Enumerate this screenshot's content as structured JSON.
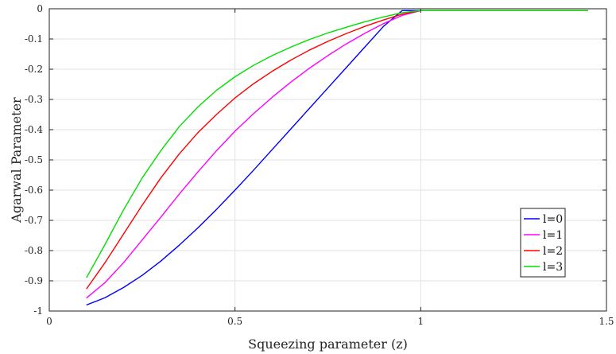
{
  "chart_data": {
    "type": "line",
    "xlabel": "Squeezing parameter (z)",
    "ylabel": "Agarwal Parameter",
    "xlim": [
      0,
      1.5
    ],
    "ylim": [
      -1,
      0
    ],
    "xticks": [
      0,
      0.5,
      1,
      1.5
    ],
    "xtick_labels": [
      "0",
      "0.5",
      "1",
      "1.5"
    ],
    "yticks": [
      0,
      -0.1,
      -0.2,
      -0.3,
      -0.4,
      -0.5,
      -0.6,
      -0.7,
      -0.8,
      -0.9,
      -1
    ],
    "ytick_labels": [
      "0",
      "-0.1",
      "-0.2",
      "-0.3",
      "-0.4",
      "-0.5",
      "-0.6",
      "-0.7",
      "-0.8",
      "-0.9",
      "-1"
    ],
    "grid": true,
    "legend_position": "bottom-right",
    "x": [
      0.1,
      0.15,
      0.2,
      0.25,
      0.3,
      0.35,
      0.4,
      0.45,
      0.5,
      0.55,
      0.6,
      0.65,
      0.7,
      0.75,
      0.8,
      0.85,
      0.9,
      0.95,
      1.0,
      1.05,
      1.1,
      1.15,
      1.2,
      1.25,
      1.3,
      1.35,
      1.4,
      1.45
    ],
    "series": [
      {
        "name": "l=0",
        "color": "#0000ff",
        "values": [
          -0.98,
          -0.956,
          -0.922,
          -0.882,
          -0.835,
          -0.782,
          -0.725,
          -0.664,
          -0.6,
          -0.534,
          -0.466,
          -0.398,
          -0.33,
          -0.262,
          -0.194,
          -0.126,
          -0.058,
          -0.006,
          -0.006,
          -0.006,
          -0.006,
          -0.006,
          -0.006,
          -0.006,
          -0.006,
          -0.006,
          -0.006,
          -0.006
        ]
      },
      {
        "name": "l=1",
        "color": "#ff00ff",
        "values": [
          -0.957,
          -0.906,
          -0.84,
          -0.765,
          -0.69,
          -0.613,
          -0.54,
          -0.47,
          -0.405,
          -0.347,
          -0.293,
          -0.243,
          -0.197,
          -0.155,
          -0.116,
          -0.081,
          -0.049,
          -0.022,
          -0.006,
          -0.006,
          -0.006,
          -0.006,
          -0.006,
          -0.006,
          -0.006,
          -0.006,
          -0.006,
          -0.006
        ]
      },
      {
        "name": "l=2",
        "color": "#ff0000",
        "values": [
          -0.927,
          -0.84,
          -0.745,
          -0.65,
          -0.56,
          -0.48,
          -0.41,
          -0.35,
          -0.295,
          -0.248,
          -0.207,
          -0.17,
          -0.137,
          -0.108,
          -0.082,
          -0.058,
          -0.037,
          -0.018,
          -0.006,
          -0.006,
          -0.006,
          -0.006,
          -0.006,
          -0.006,
          -0.006,
          -0.006,
          -0.006,
          -0.006
        ]
      },
      {
        "name": "l=3",
        "color": "#00dd00",
        "values": [
          -0.89,
          -0.78,
          -0.665,
          -0.56,
          -0.47,
          -0.39,
          -0.325,
          -0.27,
          -0.225,
          -0.187,
          -0.155,
          -0.127,
          -0.102,
          -0.08,
          -0.061,
          -0.043,
          -0.027,
          -0.013,
          -0.006,
          -0.006,
          -0.006,
          -0.006,
          -0.006,
          -0.006,
          -0.006,
          -0.006,
          -0.006,
          -0.006
        ]
      }
    ]
  }
}
